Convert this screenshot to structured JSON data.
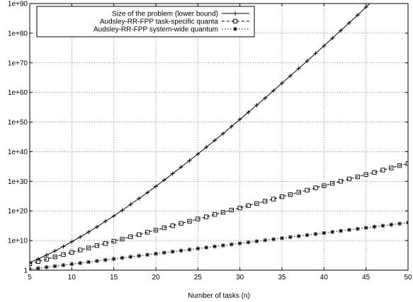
{
  "chart_data": {
    "type": "line",
    "title": "",
    "xlabel": "Number of tasks (n)",
    "ylabel": "",
    "y_scale": "log10",
    "xlim": [
      5,
      50
    ],
    "ylim_exponent": [
      0,
      90
    ],
    "grid": true,
    "legend_position": "top-left",
    "x_ticks": [
      5,
      10,
      15,
      20,
      25,
      30,
      35,
      40,
      45,
      50
    ],
    "x_tick_labels": [
      "5",
      "10",
      "15",
      "20",
      "25",
      "30",
      "35",
      "40",
      "45",
      "50"
    ],
    "y_ticks_exponent": [
      0,
      10,
      20,
      30,
      40,
      50,
      60,
      70,
      80,
      90
    ],
    "y_tick_labels": [
      "1",
      "1e+10",
      "1e+20",
      "1e+30",
      "1e+40",
      "1e+50",
      "1e+60",
      "1e+70",
      "1e+80",
      "1e+90"
    ],
    "x": [
      5,
      6,
      7,
      8,
      9,
      10,
      11,
      12,
      13,
      14,
      15,
      16,
      17,
      18,
      19,
      20,
      21,
      22,
      23,
      24,
      25,
      26,
      27,
      28,
      29,
      30,
      31,
      32,
      33,
      34,
      35,
      36,
      37,
      38,
      39,
      40,
      41,
      42,
      43,
      44,
      45,
      46,
      47,
      48,
      49,
      50
    ],
    "series": [
      {
        "name": "Size of the problem (lower bound)",
        "marker": "plus",
        "line": "solid",
        "log10_values": [
          2.6,
          3.8,
          5.1,
          6.5,
          8.0,
          9.6,
          11.2,
          12.9,
          14.6,
          16.5,
          18.3,
          20.2,
          22.2,
          24.2,
          26.2,
          28.3,
          30.4,
          32.6,
          34.8,
          37.0,
          39.2,
          41.5,
          43.8,
          46.1,
          48.5,
          50.9,
          53.3,
          55.7,
          58.1,
          60.6,
          63.1,
          65.6,
          68.1,
          70.6,
          73.2,
          75.7,
          78.3,
          80.9,
          83.5,
          86.1,
          88.8,
          91.4,
          94.1,
          96.8,
          99.4,
          102.2
        ]
      },
      {
        "name": "Audsley-RR-FPP task-specific quanta",
        "marker": "square",
        "line": "dashed",
        "log10_values": [
          2.2,
          2.9,
          3.7,
          4.5,
          5.3,
          6.0,
          6.8,
          7.5,
          8.3,
          9.0,
          9.8,
          10.5,
          11.3,
          12.0,
          12.8,
          13.5,
          14.3,
          15.0,
          15.8,
          16.5,
          17.3,
          18.0,
          18.8,
          19.5,
          20.3,
          21.0,
          21.8,
          22.5,
          23.3,
          24.0,
          24.8,
          25.5,
          26.3,
          27.0,
          27.8,
          28.5,
          29.3,
          30.0,
          30.8,
          31.5,
          32.3,
          33.0,
          33.8,
          34.5,
          35.3,
          36.0
        ]
      },
      {
        "name": "Audsley-RR-FPP system-wide quantum",
        "marker": "asterisk",
        "line": "dotted",
        "log10_values": [
          0.3,
          0.65,
          1.0,
          1.35,
          1.7,
          2.05,
          2.4,
          2.75,
          3.1,
          3.45,
          3.8,
          4.15,
          4.5,
          4.85,
          5.2,
          5.55,
          5.9,
          6.25,
          6.6,
          6.95,
          7.3,
          7.65,
          8.0,
          8.35,
          8.7,
          9.05,
          9.4,
          9.75,
          10.1,
          10.45,
          10.8,
          11.15,
          11.5,
          11.85,
          12.2,
          12.55,
          12.9,
          13.25,
          13.6,
          13.95,
          14.3,
          14.65,
          15.0,
          15.35,
          15.7,
          16.05
        ]
      }
    ]
  }
}
